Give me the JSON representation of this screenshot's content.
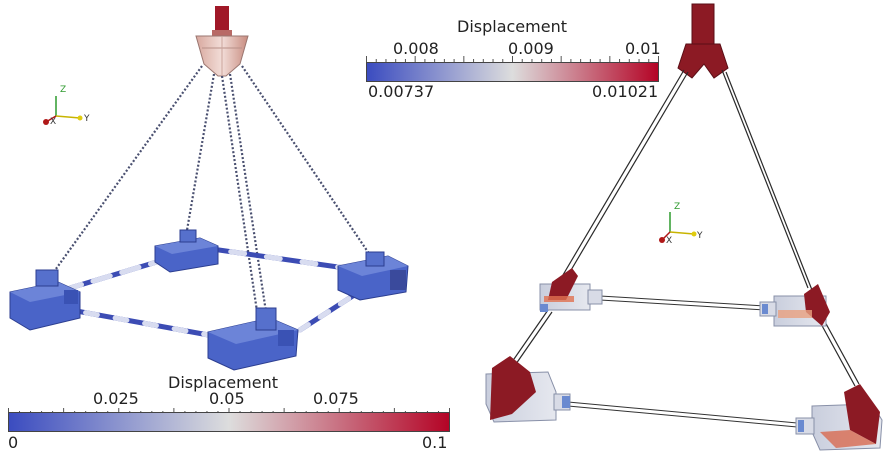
{
  "left_panel": {
    "colorbar": {
      "title": "Displacement",
      "range_min": "0",
      "range_max": "0.1",
      "tick_labels": [
        "0.025",
        "0.05",
        "0.075"
      ],
      "colors": [
        "#3b4cc0",
        "#dddddd",
        "#b40426"
      ]
    },
    "axes": {
      "x": "X",
      "y": "Y",
      "z": "Z"
    }
  },
  "right_panel": {
    "colorbar": {
      "title": "Displacement",
      "range_min": "0.00737",
      "range_max": "0.01021",
      "tick_labels": [
        "0.008",
        "0.009",
        "0.01"
      ],
      "colors": [
        "#3b4cc0",
        "#dddddd",
        "#b40426"
      ]
    },
    "axes": {
      "x": "X",
      "y": "Y",
      "z": "Z"
    }
  },
  "colors": {
    "structure_blue": "#4a64c8",
    "structure_red": "#8c1a24",
    "hook_pink": "#e9c8c2",
    "frame_grey": "#c8ccd8"
  }
}
